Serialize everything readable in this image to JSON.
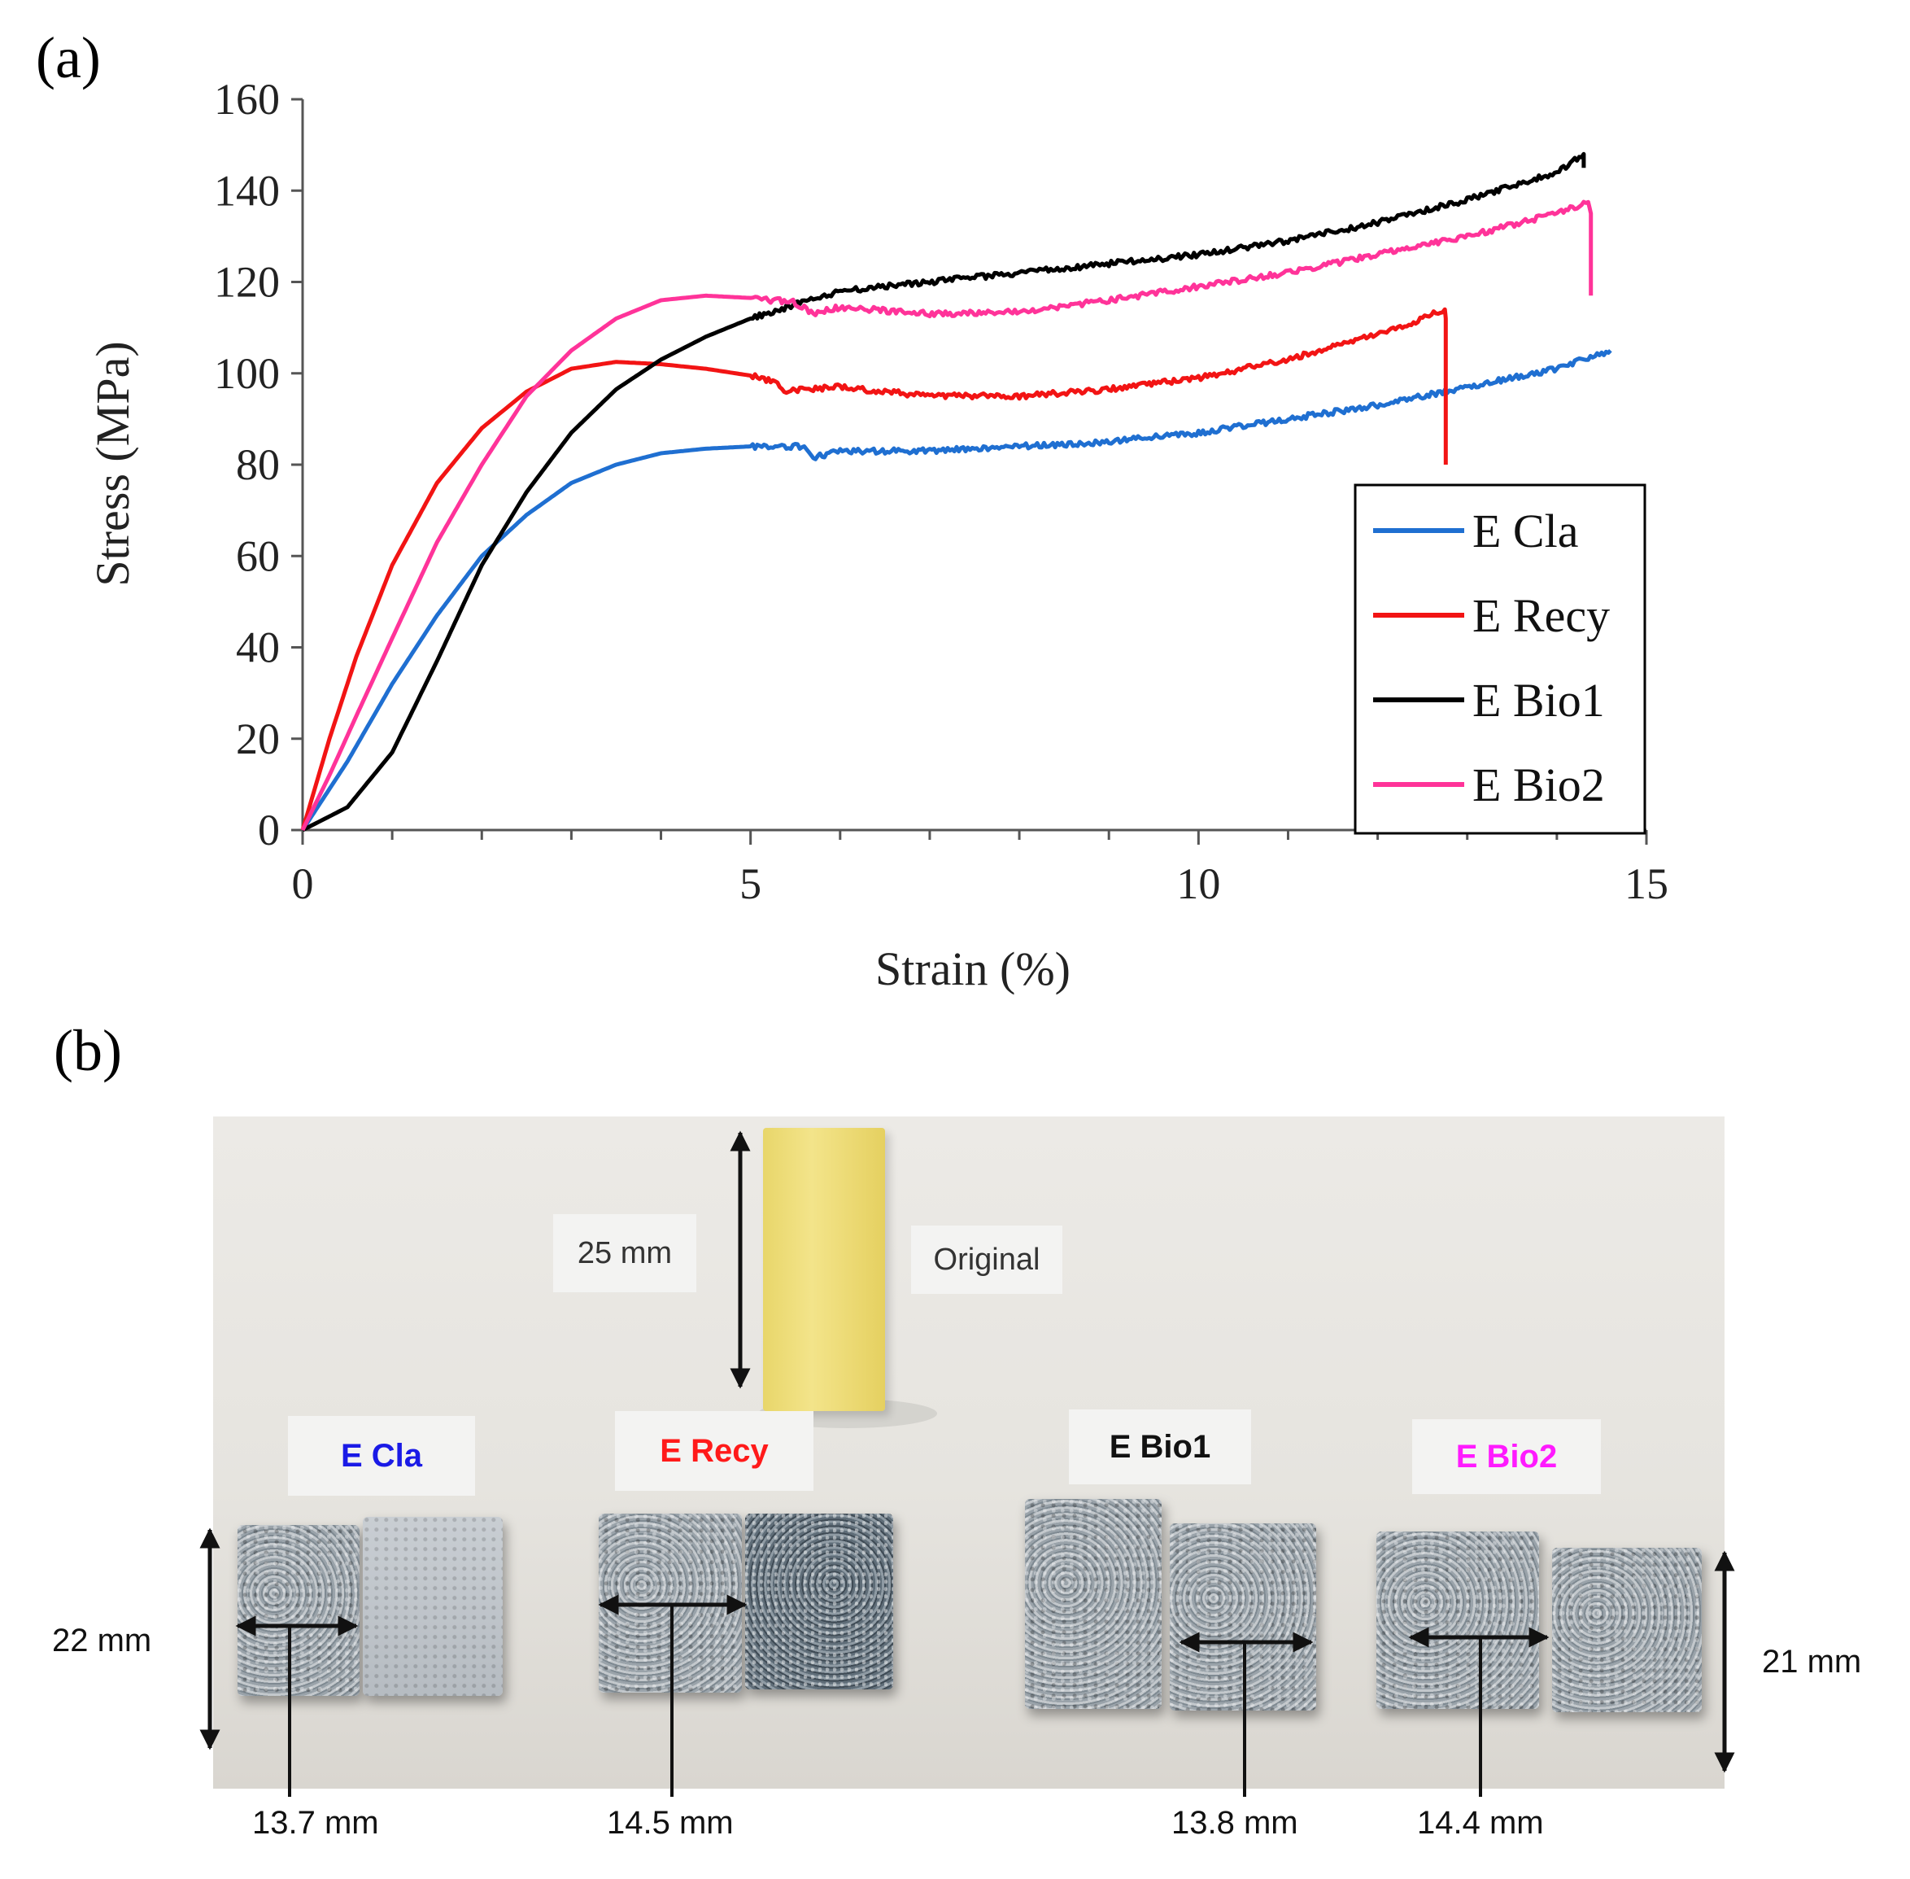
{
  "panel_labels": {
    "a": "(a)",
    "b": "(b)"
  },
  "chart_data": {
    "type": "line",
    "title": "",
    "xlabel": "Strain (%)",
    "ylabel": "Stress (MPa)",
    "xlim": [
      0,
      15
    ],
    "ylim": [
      0,
      160
    ],
    "xticks": [
      0,
      5,
      10,
      15
    ],
    "yticks": [
      0,
      20,
      40,
      60,
      80,
      100,
      120,
      140,
      160
    ],
    "legend_position": "bottom-right",
    "series": [
      {
        "name": "E Cla",
        "color": "#1f6fd1",
        "x": [
          0,
          0.5,
          1,
          1.5,
          2,
          2.5,
          3,
          3.5,
          4,
          4.5,
          5,
          5.6,
          5.7,
          6,
          7,
          8,
          9,
          10,
          11,
          12,
          13,
          14,
          14.6
        ],
        "y": [
          0,
          15,
          32,
          47,
          60,
          69,
          76,
          80,
          82.5,
          83.5,
          84,
          84,
          81.5,
          83,
          83,
          84,
          85,
          87,
          90,
          93,
          97,
          101,
          105
        ]
      },
      {
        "name": "E Recy",
        "color": "#f21414",
        "x": [
          0,
          0.3,
          0.6,
          1,
          1.5,
          2,
          2.5,
          3,
          3.5,
          4,
          4.5,
          5,
          5.3,
          5.35,
          6,
          7,
          8,
          9,
          10,
          11,
          12,
          12.5,
          12.75,
          12.76,
          12.76
        ],
        "y": [
          0,
          20,
          38,
          58,
          76,
          88,
          96,
          101,
          102.5,
          102,
          101,
          99.5,
          98,
          96,
          97,
          95,
          95,
          96.5,
          99,
          103,
          108.5,
          112,
          114,
          112,
          80
        ]
      },
      {
        "name": "E Bio1",
        "color": "#000000",
        "x": [
          0,
          0.5,
          1,
          1.5,
          2,
          2.5,
          3,
          3.5,
          4,
          4.5,
          5,
          5.5,
          6,
          7,
          8,
          9,
          10,
          11,
          12,
          13,
          14,
          14.3,
          14.3
        ],
        "y": [
          0,
          5,
          17,
          37,
          58,
          74,
          87,
          96.5,
          103,
          108,
          112,
          115,
          118,
          120,
          122,
          124,
          126,
          129,
          133,
          138,
          144,
          148,
          145
        ]
      },
      {
        "name": "E Bio2",
        "color": "#ff3399",
        "x": [
          0,
          0.3,
          0.6,
          1,
          1.5,
          2,
          2.5,
          3,
          3.5,
          4,
          4.5,
          5,
          5.5,
          5.7,
          6,
          7,
          8,
          9,
          10,
          11,
          12,
          13,
          14,
          14.35,
          14.38,
          14.38
        ],
        "y": [
          0,
          12,
          25,
          42,
          63,
          80,
          95,
          105,
          112,
          116,
          117,
          116.5,
          115.5,
          113,
          114.5,
          113,
          113.5,
          116,
          119,
          122,
          126,
          130,
          135,
          137.5,
          135,
          117
        ]
      }
    ]
  },
  "photo": {
    "original_label": "Original",
    "original_length": "25 mm",
    "samples": [
      {
        "label": "E Cla",
        "color": "#1a1ae6",
        "width_label": "13.7 mm"
      },
      {
        "label": "E Recy",
        "color": "#ff1a1a",
        "width_label": "14.5 mm"
      },
      {
        "label": "E Bio1",
        "color": "#111111",
        "width_label": "13.8 mm"
      },
      {
        "label": "E Bio2",
        "color": "#ff1aff",
        "width_label": "14.4 mm"
      }
    ],
    "height_left": "22 mm",
    "height_right": "21 mm"
  }
}
